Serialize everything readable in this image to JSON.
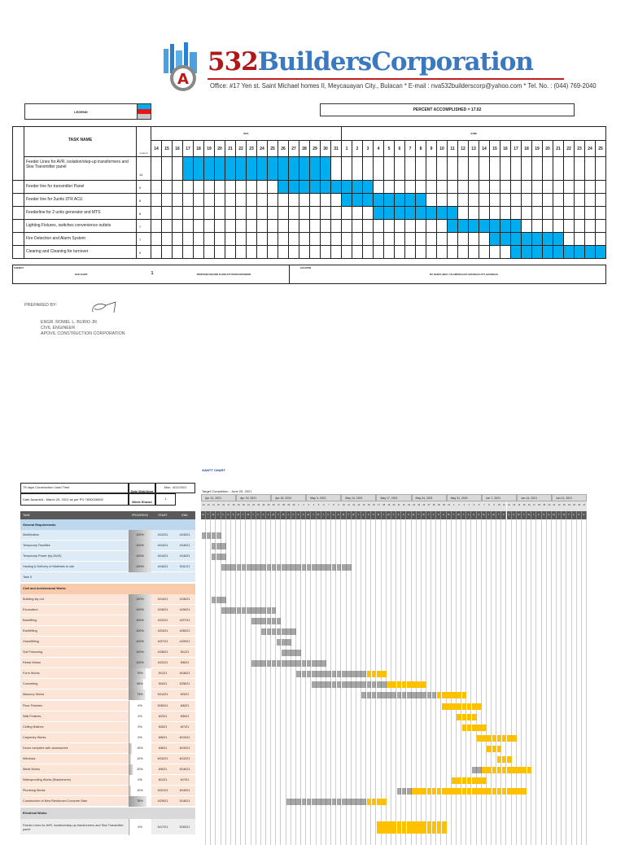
{
  "header": {
    "logo_num": "532",
    "logo_name": "BuildersCorporation",
    "office": "Office: #17 Yen st. Saint Michael homes II, Meycauayan City., Bulacan * E-mail : nva532builderscorp@yahoo.com * Tel. No. : (044) 769-2040"
  },
  "bar_chart": {
    "legend_label": "LEGEND",
    "legend_colors": [
      "#00aeef",
      "#e8141b",
      "#c8c8c8"
    ],
    "percent_label": "PERCENT ACCOMPLISHED = 17.62",
    "task_header": "TASK NAME",
    "duration_header": "DURATION",
    "months": [
      {
        "name": "MAY",
        "days": [
          14,
          15,
          16,
          17,
          18,
          19,
          20,
          21,
          22,
          23,
          24,
          25,
          26,
          27,
          28,
          29,
          30,
          31
        ]
      },
      {
        "name": "JUNE",
        "days": [
          1,
          2,
          3,
          4,
          5,
          6,
          7,
          8,
          9,
          10,
          11,
          12,
          13,
          14,
          15,
          16,
          17,
          18,
          19,
          20,
          21,
          22,
          23,
          24,
          25
        ]
      }
    ],
    "bar_color": "#00aeef",
    "tasks": [
      {
        "name": "Feeder Lines for AVR, isolation/step-up transformers and Skw Transmitter panel",
        "duration": "14",
        "start": "May 17",
        "end": "May 30"
      },
      {
        "name": "Feeder line for transmitter Panel",
        "duration": "9",
        "start": "May 26",
        "end": "Jun 3"
      },
      {
        "name": "Feeder line for 2units 3TR ACU",
        "duration": "8",
        "start": "Jun 1",
        "end": "Jun 8"
      },
      {
        "name": "Feederline for 2 units generator and MTS",
        "duration": "8",
        "start": "Jun 4",
        "end": "Jun 11"
      },
      {
        "name": "Lighting Fixtures, switches convenience outlets",
        "duration": "7",
        "start": "Jun 11",
        "end": "Jun 17"
      },
      {
        "name": "Fire Detection and Alarm System",
        "duration": "7",
        "start": "Jun 15",
        "end": "Jun 21"
      },
      {
        "name": "Clearing and Cleaning for turnover",
        "duration": "9",
        "start": "Jun 17",
        "end": "Jun 25"
      }
    ],
    "footer": {
      "subject_label": "SUBJECT :",
      "subject": "BAR CHART",
      "sheet": "1",
      "project": "PROPOSED SECOND FLOOR ETT ROOM EXPANSION",
      "location_label": "LOCATION",
      "location": "MT. BANOY, BRGY. TALUMPOK EAST, BATANGAS CITY, BATANGAS"
    }
  },
  "prepared": {
    "label": "PREPARED BY:",
    "name": "ENGR. ROMEL L. BURIO JR.",
    "title": "CIVIL ENGINEER",
    "company": "APOVIL CONSTRUCTION CORPORATION"
  },
  "gantt": {
    "title": "GANTT CHART",
    "info": {
      "lead_time": "75 days Construction Lead Time",
      "date_mobilized_label": "Date Mobilized",
      "date_mobilized": "Mon, 4/12/2021",
      "awarded": "Date Awarded - March 29, 2021 as per PO 7830026692",
      "week_shown_label": "Week Shown",
      "week_shown": "1"
    },
    "target": "Target Completion - June 25, 2021",
    "weeks": [
      "Apr 12, 2021",
      "Apr 19, 2021",
      "Apr 26, 2021",
      "May 3, 2021",
      "May 10, 2021",
      "May 17, 2021",
      "May 24, 2021",
      "May 31, 2021",
      "Jun 7, 2021",
      "Jun 14, 2021",
      "Jun 21, 2021"
    ],
    "weekdays": [
      "M",
      "T",
      "W",
      "T",
      "F",
      "S",
      "S"
    ],
    "columns": {
      "task": "TASK",
      "progress": "PROGRESS",
      "start": "START",
      "end": "END"
    },
    "colors": {
      "done": "#a6a6a6",
      "remaining": "#ffc000"
    },
    "sections": [
      {
        "name": "General Requirements",
        "header_color": "#bdd7ee",
        "row_color": "#ddebf7",
        "tasks": [
          {
            "name": "Mobilization",
            "progress": "100%",
            "start": "4/12/21",
            "end": "4/15/21"
          },
          {
            "name": "Temporary Facilities",
            "progress": "100%",
            "start": "4/14/21",
            "end": "4/16/21"
          },
          {
            "name": "Temporary Power (by-DIAS)",
            "progress": "100%",
            "start": "4/14/21",
            "end": "4/16/21"
          },
          {
            "name": "Hauling & Delivery of Materials to site",
            "progress": "100%",
            "start": "4/16/21",
            "end": "5/11/21"
          },
          {
            "name": "Task 5",
            "progress": "",
            "start": "",
            "end": ""
          }
        ]
      },
      {
        "name": "Civil and Architectural Works",
        "header_color": "#f8cbad",
        "row_color": "#fce4d6",
        "tasks": [
          {
            "name": "Building lay out",
            "progress": "100%",
            "start": "4/14/21",
            "end": "4/16/21"
          },
          {
            "name": "Excavation",
            "progress": "100%",
            "start": "4/16/21",
            "end": "4/26/21"
          },
          {
            "name": "Backfilling",
            "progress": "100%",
            "start": "4/22/21",
            "end": "4/27/21"
          },
          {
            "name": "Earthfilling",
            "progress": "100%",
            "start": "4/24/21",
            "end": "4/30/21"
          },
          {
            "name": "Gravelfilling",
            "progress": "100%",
            "start": "4/27/21",
            "end": "4/29/21"
          },
          {
            "name": "Soil Poisoning",
            "progress": "100%",
            "start": "4/28/21",
            "end": "5/1/21"
          },
          {
            "name": "Rebar Works",
            "progress": "100%",
            "start": "4/22/21",
            "end": "5/6/21"
          },
          {
            "name": "Form Works",
            "progress": "75%",
            "start": "5/1/21",
            "end": "5/18/21"
          },
          {
            "name": "Concreting",
            "progress": "65%",
            "start": "5/4/21",
            "end": "5/26/21"
          },
          {
            "name": "Masonry Works",
            "progress": "73%",
            "start": "5/14/21",
            "end": "6/3/21"
          },
          {
            "name": "Floor Finishes",
            "progress": "0%",
            "start": "5/30/21",
            "end": "6/6/21"
          },
          {
            "name": "Wall Finishes",
            "progress": "0%",
            "start": "6/2/21",
            "end": "6/5/21"
          },
          {
            "name": "Ceiling finishes",
            "progress": "0%",
            "start": "6/3/21",
            "end": "6/7/21"
          },
          {
            "name": "Carpentry Works",
            "progress": "0%",
            "start": "6/6/21",
            "end": "6/13/21"
          },
          {
            "name": "Doors complete with accessories",
            "progress": "15%",
            "start": "6/8/21",
            "end": "6/10/21"
          },
          {
            "name": "Windows",
            "progress": "10%",
            "start": "6/10/21",
            "end": "6/12/21"
          },
          {
            "name": "Metal Works",
            "progress": "20%",
            "start": "6/5/21",
            "end": "6/16/21"
          },
          {
            "name": "Waterproofing Works (Elastomeric)",
            "progress": "0%",
            "start": "6/1/21",
            "end": "6/7/21"
          },
          {
            "name": "Plumbing Works",
            "progress": "10%",
            "start": "5/21/21",
            "end": "6/15/21"
          },
          {
            "name": "Construction of New Reinforced Concrete Stair",
            "progress": "78%",
            "start": "4/29/21",
            "end": "5/18/21"
          }
        ]
      },
      {
        "name": "Electrical Works",
        "header_color": "#d9d9d9",
        "row_color": "#ededed",
        "tasks": [
          {
            "name": "Feeder Lines for AVR, isolation/step-up transformers and Skw Transmitter panel",
            "progress": "0%",
            "start": "5/17/21",
            "end": "5/30/21"
          }
        ]
      }
    ]
  }
}
